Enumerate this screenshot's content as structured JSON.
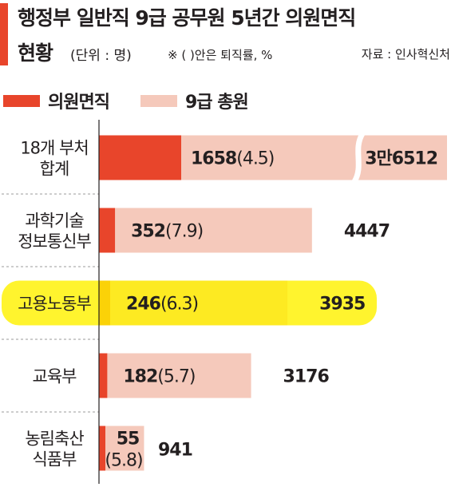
{
  "title_line1": "행정부 일반직 9급 공무원 5년간 의원면직",
  "title_line2": "현황",
  "unit": "(단위 : 명)",
  "note": "※ ( )안은 퇴직률, %",
  "source": "자료 : 인사혁신처",
  "colors": {
    "accent": "#e8452b",
    "resignation": "#e8452b",
    "total": "#f5c9bb",
    "highlight": "#fff200",
    "divider": "#9b9b9b"
  },
  "legend": [
    {
      "label": "의원면직",
      "color": "#e8452b"
    },
    {
      "label": "9급 총원",
      "color": "#f5c9bb"
    }
  ],
  "chart_data": {
    "type": "bar",
    "orientation": "horizontal",
    "stacking": "overlay",
    "categories": [
      [
        "18개 부처",
        "합계"
      ],
      [
        "과학기술",
        "정보통신부"
      ],
      [
        "고용노동부"
      ],
      [
        "교육부"
      ],
      [
        "농림축산",
        "식품부"
      ]
    ],
    "series": [
      {
        "name": "의원면직",
        "values": [
          1658,
          352,
          246,
          182,
          55
        ],
        "rates": [
          4.5,
          7.9,
          6.3,
          5.7,
          5.8
        ]
      },
      {
        "name": "9급 총원",
        "values": [
          36512,
          4447,
          3935,
          3176,
          941
        ]
      }
    ],
    "value_labels": {
      "resigned": [
        "1658",
        "352",
        "246",
        "182",
        "55"
      ],
      "rate": [
        "(4.5)",
        "(7.9)",
        "(6.3)",
        "(5.7)",
        "(5.8)"
      ],
      "total": [
        "3만6512",
        "4447",
        "3935",
        "3176",
        "941"
      ]
    },
    "axis_break": {
      "category_index": 0
    },
    "highlight_category_index": 2,
    "grid": false
  }
}
